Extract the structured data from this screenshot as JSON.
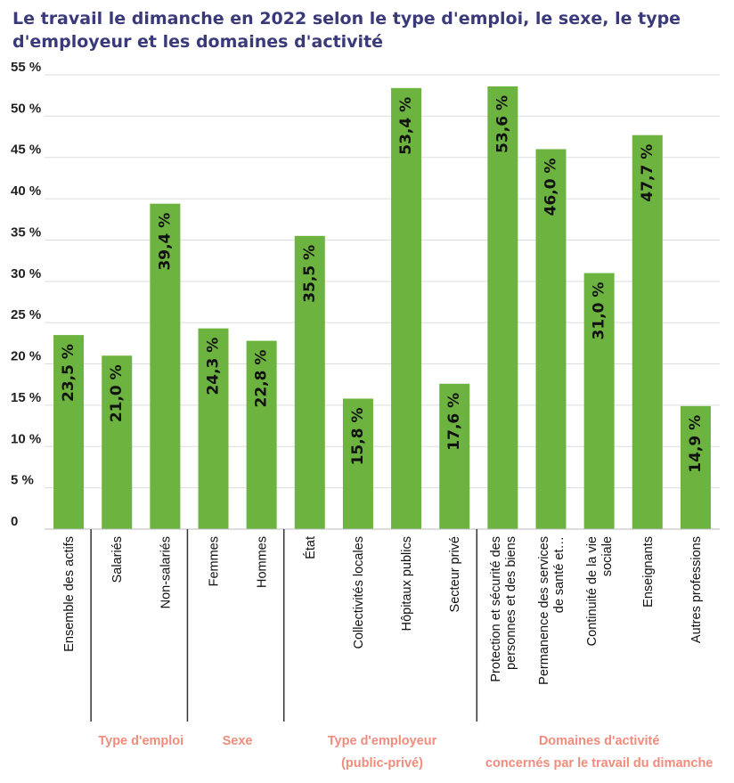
{
  "title": "Le travail le dimanche en 2022 selon le type d'emploi, le sexe, le type d'employeur et les domaines d'activité",
  "colors": {
    "bar": "#6db33f",
    "grid": "#dddddd",
    "group_label": "#f08c7c",
    "title": "#3a3a7a"
  },
  "chart_data": {
    "type": "bar",
    "title": "Le travail le dimanche en 2022 selon le type d'emploi, le sexe, le type d'employeur et les domaines d'activité",
    "xlabel": "",
    "ylabel": "",
    "ylim": [
      0,
      55
    ],
    "yticks": [
      0,
      5,
      10,
      15,
      20,
      25,
      30,
      35,
      40,
      45,
      50,
      55
    ],
    "ytick_labels": [
      "0",
      "5 %",
      "10 %",
      "15 %",
      "20 %",
      "25 %",
      "30 %",
      "35 %",
      "40 %",
      "45 %",
      "50 %",
      "55 %"
    ],
    "grid": true,
    "categories": [
      [
        "Ensemble des actifs"
      ],
      [
        "Salariés"
      ],
      [
        "Non-salariés"
      ],
      [
        "Femmes"
      ],
      [
        "Hommes"
      ],
      [
        "État"
      ],
      [
        "Collectivités locales"
      ],
      [
        "Hôpitaux publics"
      ],
      [
        "Secteur privé"
      ],
      [
        "Protection et sécurité des",
        "personnes et des biens"
      ],
      [
        "Permanence des services",
        "de santé et…"
      ],
      [
        "Continuité de la vie",
        "sociale"
      ],
      [
        "Enseignants"
      ],
      [
        "Autres professions"
      ]
    ],
    "values": [
      23.5,
      21.0,
      39.4,
      24.3,
      22.8,
      35.5,
      15.8,
      53.4,
      17.6,
      53.6,
      46.0,
      31.0,
      47.7,
      14.9
    ],
    "value_labels": [
      "23,5 %",
      "21,0 %",
      "39,4 %",
      "24,3 %",
      "22,8 %",
      "35,5 %",
      "15,8 %",
      "53,4 %",
      "17,6 %",
      "53,6 %",
      "46,0 %",
      "31,0 %",
      "47,7 %",
      "14,9 %"
    ],
    "groups": [
      {
        "name": [
          "Type d'emploi"
        ],
        "start": 1,
        "end": 2
      },
      {
        "name": [
          "Sexe"
        ],
        "start": 3,
        "end": 4
      },
      {
        "name": [
          "Type d'employeur",
          "(public-privé)"
        ],
        "start": 5,
        "end": 8
      },
      {
        "name": [
          "Domaines d'activité",
          "concernés par le travail du dimanche"
        ],
        "start": 9,
        "end": 13
      }
    ]
  }
}
